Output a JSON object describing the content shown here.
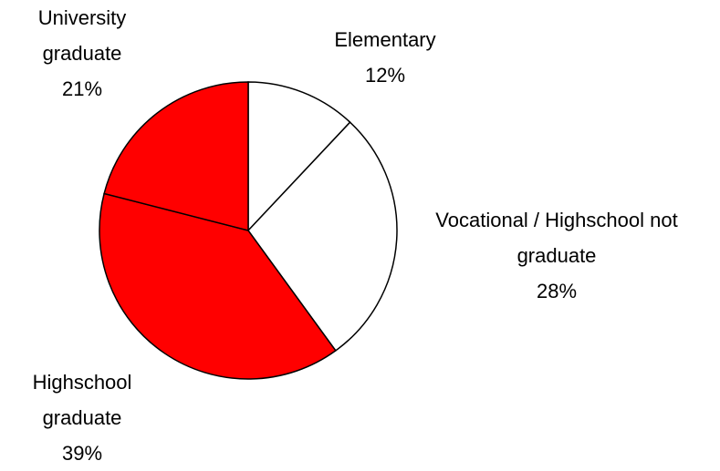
{
  "chart_data": {
    "type": "pie",
    "categories": [
      "Elementary",
      "Vocational / Highschool not graduate",
      "Highschool graduate",
      "University graduate"
    ],
    "values": [
      12,
      28,
      39,
      21
    ],
    "value_labels": [
      "12%",
      "28%",
      "39%",
      "21%"
    ],
    "colors": [
      "#ffffff",
      "#ffffff",
      "#ff0000",
      "#ff0000"
    ]
  }
}
